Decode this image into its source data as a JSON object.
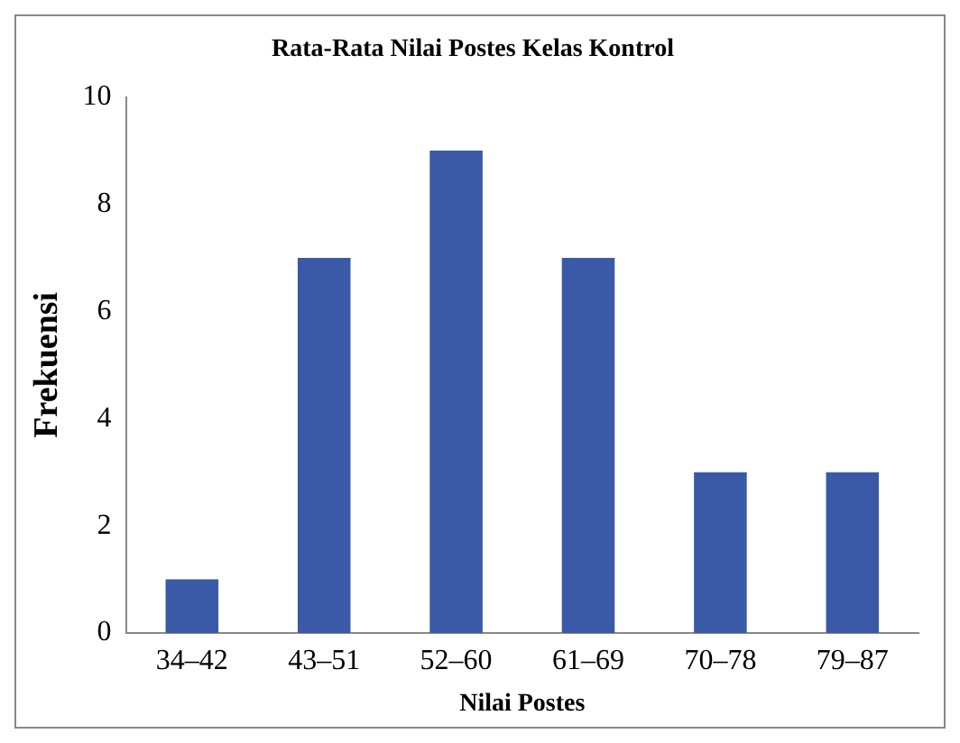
{
  "chart_data": {
    "type": "bar",
    "title": "Rata-Rata Nilai Postes Kelas Kontrol",
    "xlabel": "Nilai Postes",
    "ylabel": "Frekuensi",
    "categories": [
      "34–42",
      "43–51",
      "52–60",
      "61–69",
      "70–78",
      "79–87"
    ],
    "values": [
      1,
      7,
      9,
      7,
      3,
      3
    ],
    "color": "#3a5aa8",
    "ylim": [
      0,
      10
    ],
    "yticks": [
      0,
      2,
      4,
      6,
      8,
      10
    ],
    "grid": false,
    "legend": false
  }
}
